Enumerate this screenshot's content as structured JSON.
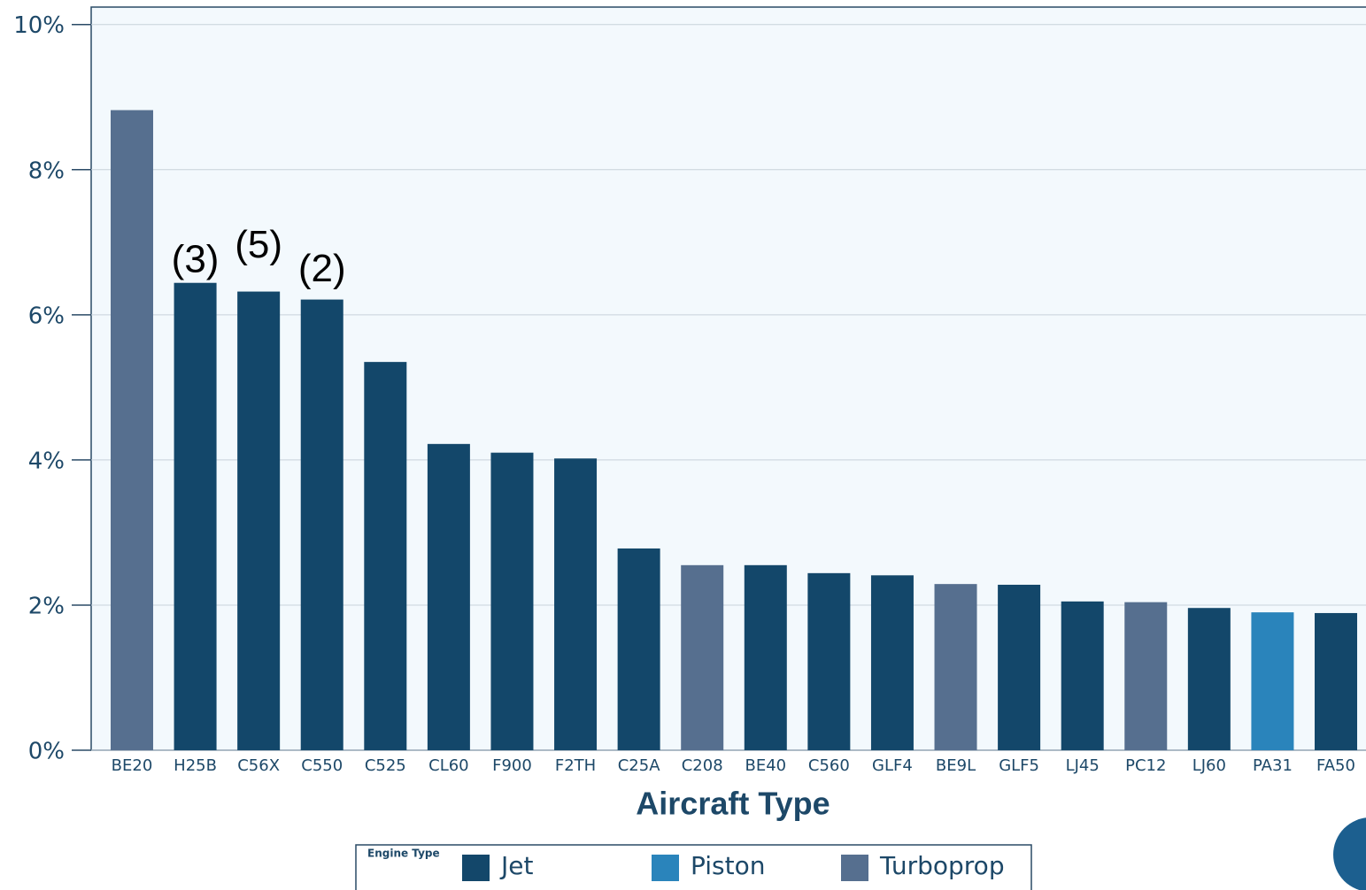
{
  "chart_data": {
    "type": "bar",
    "categories": [
      "BE20",
      "H25B",
      "C56X",
      "C550",
      "C525",
      "CL60",
      "F900",
      "F2TH",
      "C25A",
      "C208",
      "BE40",
      "C560",
      "GLF4",
      "BE9L",
      "GLF5",
      "LJ45",
      "PC12",
      "LJ60",
      "PA31",
      "FA50"
    ],
    "series": [
      {
        "name": "Jet",
        "color": "#13476a",
        "values": [
          null,
          6.44,
          6.32,
          6.21,
          5.35,
          4.22,
          4.1,
          4.02,
          2.78,
          null,
          2.55,
          2.44,
          2.41,
          null,
          2.28,
          2.05,
          null,
          1.96,
          null,
          1.89
        ]
      },
      {
        "name": "Piston",
        "color": "#2a84bb",
        "values": [
          null,
          null,
          null,
          null,
          null,
          null,
          null,
          null,
          null,
          null,
          null,
          null,
          null,
          null,
          null,
          null,
          null,
          null,
          1.9,
          null
        ]
      },
      {
        "name": "Turboprop",
        "color": "#566f8f",
        "values": [
          8.82,
          null,
          null,
          null,
          null,
          null,
          null,
          null,
          null,
          2.55,
          null,
          null,
          null,
          2.29,
          null,
          null,
          2.04,
          null,
          null,
          null
        ]
      }
    ],
    "ylim": [
      0,
      10.24
    ],
    "yticks": [
      {
        "value": 0,
        "label": "0%"
      },
      {
        "value": 2,
        "label": "2%"
      },
      {
        "value": 4,
        "label": "4%"
      },
      {
        "value": 6,
        "label": "6%"
      },
      {
        "value": 8,
        "label": "8%"
      },
      {
        "value": 10,
        "label": "10%"
      }
    ],
    "grid": true,
    "xlabel": "Aircraft Type",
    "legend_title": "Engine Type",
    "legend_position": "bottom",
    "annotations": [
      {
        "text": "(3)",
        "category": "H25B"
      },
      {
        "text": "(5)",
        "category": "C56X"
      },
      {
        "text": "(2)",
        "category": "C550"
      }
    ]
  }
}
